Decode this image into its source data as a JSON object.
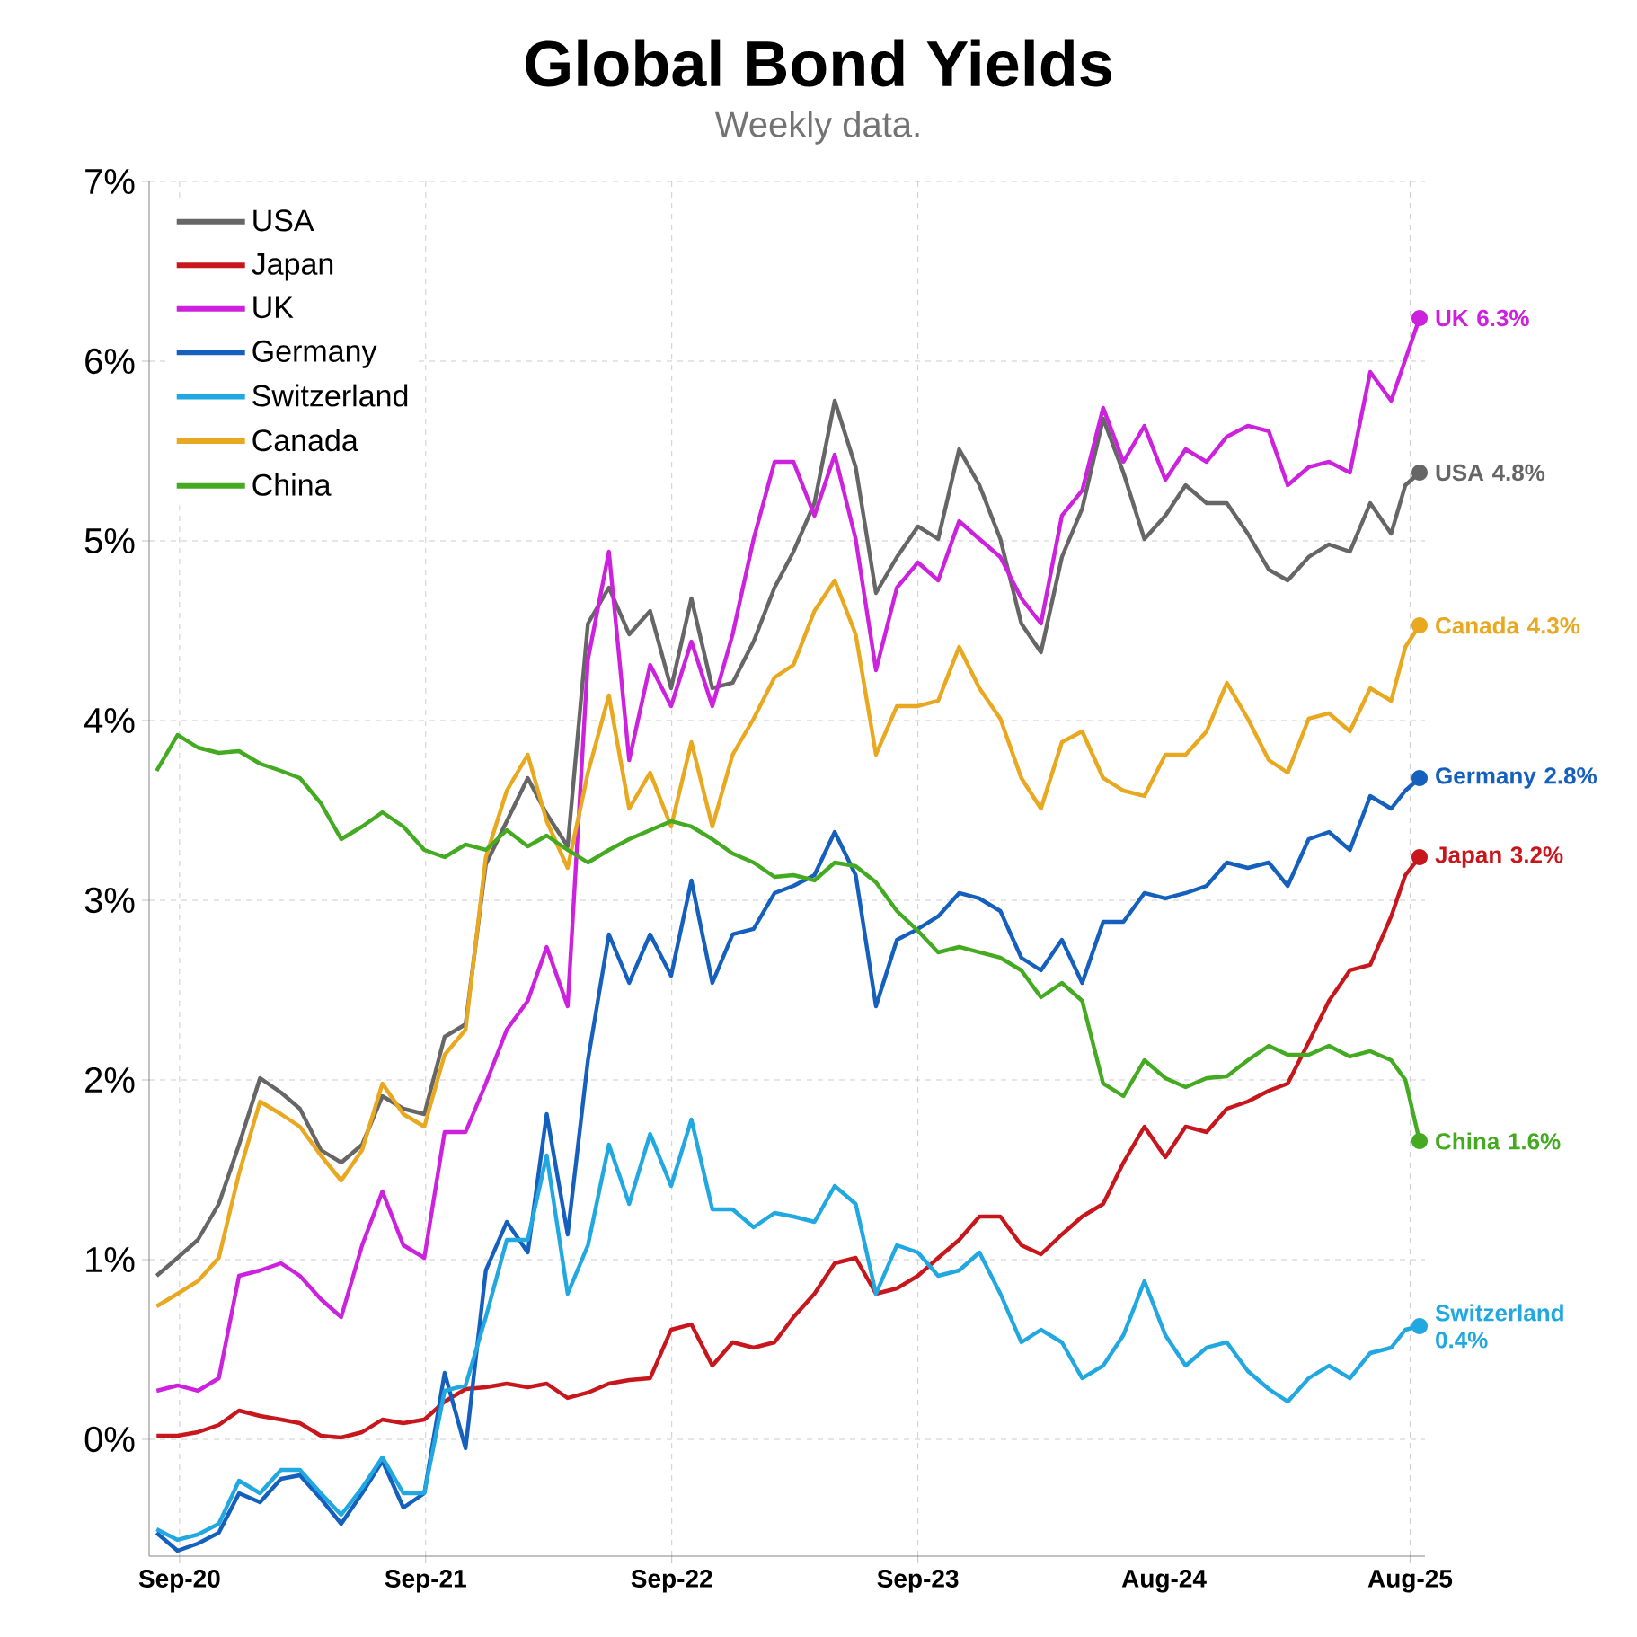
{
  "chart_data": {
    "type": "line",
    "title": "Global Bond Yields",
    "subtitle": "Weekly data.",
    "x": [
      "2020-08-01",
      "2020-09-01",
      "2020-10-01",
      "2020-11-01",
      "2020-12-01",
      "2021-01-01",
      "2021-02-01",
      "2021-03-01",
      "2021-04-01",
      "2021-05-01",
      "2021-06-01",
      "2021-07-01",
      "2021-08-01",
      "2021-09-01",
      "2021-10-01",
      "2021-11-01",
      "2021-12-01",
      "2022-01-01",
      "2022-02-01",
      "2022-03-01",
      "2022-04-01",
      "2022-05-01",
      "2022-06-01",
      "2022-07-01",
      "2022-08-01",
      "2022-09-01",
      "2022-10-01",
      "2022-11-01",
      "2022-12-01",
      "2023-01-01",
      "2023-02-01",
      "2023-03-01",
      "2023-04-01",
      "2023-05-01",
      "2023-06-01",
      "2023-07-01",
      "2023-08-01",
      "2023-09-01",
      "2023-10-01",
      "2023-11-01",
      "2023-12-01",
      "2024-01-01",
      "2024-02-01",
      "2024-03-01",
      "2024-04-01",
      "2024-05-01",
      "2024-06-01",
      "2024-07-01",
      "2024-08-01",
      "2024-09-01",
      "2024-10-01",
      "2024-11-01",
      "2024-12-01",
      "2025-01-01",
      "2025-02-01",
      "2025-03-01",
      "2025-04-01",
      "2025-05-01",
      "2025-06-01",
      "2025-07-01",
      "2025-08-01",
      "2025-08-22",
      "2025-09-12"
    ],
    "series": [
      {
        "name": "USA",
        "color": "#666666",
        "values": [
          0.91,
          1.01,
          1.11,
          1.31,
          1.64,
          2.01,
          1.93,
          1.84,
          1.61,
          1.54,
          1.64,
          1.91,
          1.84,
          1.81,
          2.24,
          2.31,
          3.2,
          3.44,
          3.68,
          3.48,
          3.3,
          4.54,
          4.74,
          4.48,
          4.61,
          4.18,
          4.68,
          4.18,
          4.21,
          4.44,
          4.74,
          4.94,
          5.21,
          5.78,
          5.41,
          4.71,
          4.91,
          5.08,
          5.01,
          5.51,
          5.31,
          5.01,
          4.54,
          4.38,
          4.91,
          5.18,
          5.68,
          5.38,
          5.01,
          5.14,
          5.31,
          5.21,
          5.21,
          5.04,
          4.84,
          4.78,
          4.91,
          4.98,
          4.94,
          5.21,
          5.04,
          5.31,
          5.38
        ]
      },
      {
        "name": "Japan",
        "color": "#c8161d",
        "values": [
          0.02,
          0.02,
          0.04,
          0.08,
          0.16,
          0.13,
          0.11,
          0.09,
          0.02,
          0.01,
          0.04,
          0.11,
          0.09,
          0.11,
          0.21,
          0.28,
          0.29,
          0.31,
          0.29,
          0.31,
          0.23,
          0.26,
          0.31,
          0.33,
          0.34,
          0.61,
          0.64,
          0.41,
          0.54,
          0.51,
          0.54,
          0.68,
          0.81,
          0.98,
          1.01,
          0.81,
          0.84,
          0.91,
          1.01,
          1.11,
          1.24,
          1.24,
          1.08,
          1.03,
          1.14,
          1.24,
          1.31,
          1.54,
          1.74,
          1.57,
          1.74,
          1.71,
          1.84,
          1.88,
          1.94,
          1.98,
          2.21,
          2.44,
          2.61,
          2.64,
          2.91,
          3.14,
          3.24
        ]
      },
      {
        "name": "UK",
        "color": "#cc22dd",
        "values": [
          0.27,
          0.3,
          0.27,
          0.34,
          0.91,
          0.94,
          0.98,
          0.91,
          0.78,
          0.68,
          1.08,
          1.38,
          1.08,
          1.01,
          1.71,
          1.71,
          1.98,
          2.28,
          2.44,
          2.74,
          2.41,
          4.34,
          4.94,
          3.78,
          4.31,
          4.08,
          4.44,
          4.08,
          4.48,
          5.01,
          5.44,
          5.44,
          5.14,
          5.48,
          5.01,
          4.28,
          4.74,
          4.88,
          4.78,
          5.11,
          5.01,
          4.91,
          4.68,
          4.54,
          5.14,
          5.28,
          5.74,
          5.44,
          5.64,
          5.34,
          5.51,
          5.44,
          5.58,
          5.64,
          5.61,
          5.31,
          5.41,
          5.44,
          5.38,
          5.94,
          5.78,
          6.01,
          6.24
        ]
      },
      {
        "name": "Germany",
        "color": "#1560bd",
        "values": [
          -0.52,
          -0.62,
          -0.58,
          -0.52,
          -0.3,
          -0.35,
          -0.22,
          -0.2,
          -0.33,
          -0.47,
          -0.3,
          -0.12,
          -0.38,
          -0.3,
          0.37,
          -0.05,
          0.94,
          1.21,
          1.04,
          1.81,
          1.14,
          2.11,
          2.81,
          2.54,
          2.81,
          2.58,
          3.11,
          2.54,
          2.81,
          2.84,
          3.04,
          3.08,
          3.14,
          3.38,
          3.14,
          2.41,
          2.78,
          2.84,
          2.91,
          3.04,
          3.01,
          2.94,
          2.68,
          2.61,
          2.78,
          2.54,
          2.88,
          2.88,
          3.04,
          3.01,
          3.04,
          3.08,
          3.21,
          3.18,
          3.21,
          3.08,
          3.34,
          3.38,
          3.28,
          3.58,
          3.51,
          3.61,
          3.68
        ]
      },
      {
        "name": "Switzerland",
        "color": "#22a8e0",
        "values": [
          -0.5,
          -0.56,
          -0.53,
          -0.47,
          -0.23,
          -0.3,
          -0.17,
          -0.17,
          -0.3,
          -0.42,
          -0.27,
          -0.1,
          -0.3,
          -0.3,
          0.27,
          0.3,
          0.68,
          1.11,
          1.11,
          1.58,
          0.81,
          1.08,
          1.64,
          1.31,
          1.7,
          1.41,
          1.78,
          1.28,
          1.28,
          1.18,
          1.26,
          1.24,
          1.21,
          1.41,
          1.31,
          0.81,
          1.08,
          1.04,
          0.91,
          0.94,
          1.04,
          0.81,
          0.54,
          0.61,
          0.54,
          0.34,
          0.41,
          0.58,
          0.88,
          0.58,
          0.41,
          0.51,
          0.54,
          0.38,
          0.28,
          0.21,
          0.34,
          0.41,
          0.34,
          0.48,
          0.51,
          0.61,
          0.63
        ]
      },
      {
        "name": "Canada",
        "color": "#e8a820",
        "values": [
          0.74,
          0.81,
          0.88,
          1.01,
          1.48,
          1.88,
          1.81,
          1.74,
          1.58,
          1.44,
          1.61,
          1.98,
          1.81,
          1.74,
          2.14,
          2.28,
          3.24,
          3.61,
          3.81,
          3.44,
          3.18,
          3.71,
          4.14,
          3.51,
          3.71,
          3.41,
          3.88,
          3.41,
          3.81,
          4.01,
          4.24,
          4.31,
          4.61,
          4.78,
          4.48,
          3.81,
          4.08,
          4.08,
          4.11,
          4.41,
          4.18,
          4.01,
          3.68,
          3.51,
          3.88,
          3.94,
          3.68,
          3.61,
          3.58,
          3.81,
          3.81,
          3.94,
          4.21,
          4.01,
          3.78,
          3.71,
          4.01,
          4.04,
          3.94,
          4.18,
          4.11,
          4.41,
          4.53
        ]
      },
      {
        "name": "China",
        "color": "#44aa22",
        "values": [
          3.72,
          3.92,
          3.85,
          3.82,
          3.83,
          3.76,
          3.72,
          3.68,
          3.54,
          3.34,
          3.41,
          3.49,
          3.41,
          3.28,
          3.24,
          3.31,
          3.28,
          3.39,
          3.3,
          3.36,
          3.28,
          3.21,
          3.28,
          3.34,
          3.39,
          3.44,
          3.41,
          3.34,
          3.26,
          3.21,
          3.13,
          3.14,
          3.11,
          3.21,
          3.19,
          3.1,
          2.94,
          2.83,
          2.71,
          2.74,
          2.71,
          2.68,
          2.61,
          2.46,
          2.54,
          2.44,
          1.98,
          1.91,
          2.11,
          2.01,
          1.96,
          2.01,
          2.02,
          2.11,
          2.19,
          2.14,
          2.14,
          2.19,
          2.13,
          2.16,
          2.11,
          2.0,
          1.66
        ]
      }
    ],
    "xlim": [
      "2020-07-21",
      "2025-09-20"
    ],
    "xticks": [
      {
        "value": "2020-09-04",
        "label": "Sep-20"
      },
      {
        "value": "2021-09-03",
        "label": "Sep-21"
      },
      {
        "value": "2022-09-02",
        "label": "Sep-22"
      },
      {
        "value": "2023-09-01",
        "label": "Sep-23"
      },
      {
        "value": "2024-08-30",
        "label": "Aug-24"
      },
      {
        "value": "2025-08-29",
        "label": "Aug-25"
      }
    ],
    "ylim": [
      -0.65,
      7
    ],
    "yticks": [
      {
        "value": 0,
        "label": "0%"
      },
      {
        "value": 1,
        "label": "1%"
      },
      {
        "value": 2,
        "label": "2%"
      },
      {
        "value": 3,
        "label": "3%"
      },
      {
        "value": 4,
        "label": "4%"
      },
      {
        "value": 5,
        "label": "5%"
      },
      {
        "value": 6,
        "label": "6%"
      },
      {
        "value": 7,
        "label": "7%"
      }
    ],
    "annotations": [
      {
        "text": "USA 4.8%",
        "x": "2025-09-12",
        "y": 5.38
      },
      {
        "text": "Japan 3.2%",
        "x": "2025-09-12",
        "y": 3.24
      },
      {
        "text": "UK 6.3%",
        "x": "2025-09-12",
        "y": 6.24
      },
      {
        "text": "Germany 2.8%",
        "x": "2025-09-12",
        "y": 3.68
      },
      {
        "text": "Switzerland 0.4%",
        "x": "2025-09-12",
        "y": 0.63
      },
      {
        "text": "Canada 4.3%",
        "x": "2025-09-12",
        "y": 4.53
      },
      {
        "text": "China 1.6%",
        "x": "2025-09-12",
        "y": 1.66
      }
    ],
    "grid": true,
    "legend": "top left",
    "line_style": "solid"
  }
}
